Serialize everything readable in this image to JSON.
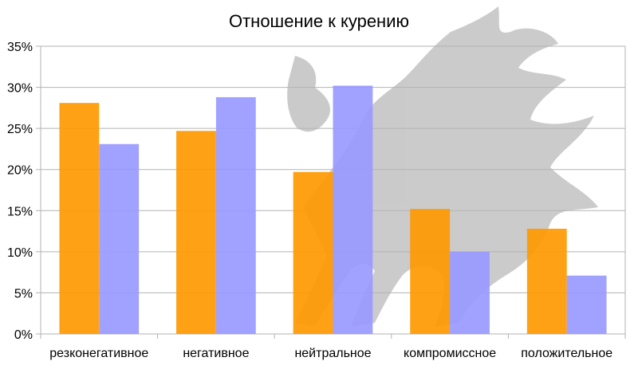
{
  "chart_data": {
    "type": "bar",
    "title": "Отношение к курению",
    "xlabel": "",
    "ylabel": "",
    "categories": [
      "резконегативное",
      "негативное",
      "нейтральное",
      "компромиссное",
      "положительное"
    ],
    "series": [
      {
        "values": [
          28.1,
          24.7,
          19.7,
          15.2,
          12.8
        ],
        "color": "#ff9900"
      },
      {
        "values": [
          23.1,
          28.8,
          30.2,
          10.0,
          7.1
        ],
        "color": "#9999ff"
      }
    ],
    "ylim": [
      0,
      35
    ],
    "yticks": [
      "0%",
      "5%",
      "10%",
      "15%",
      "20%",
      "25%",
      "30%",
      "35%"
    ],
    "ytick_values": [
      0,
      5,
      10,
      15,
      20,
      25,
      30,
      35
    ],
    "grid": true,
    "legend": "none",
    "watermark": "dragon-silhouette"
  }
}
